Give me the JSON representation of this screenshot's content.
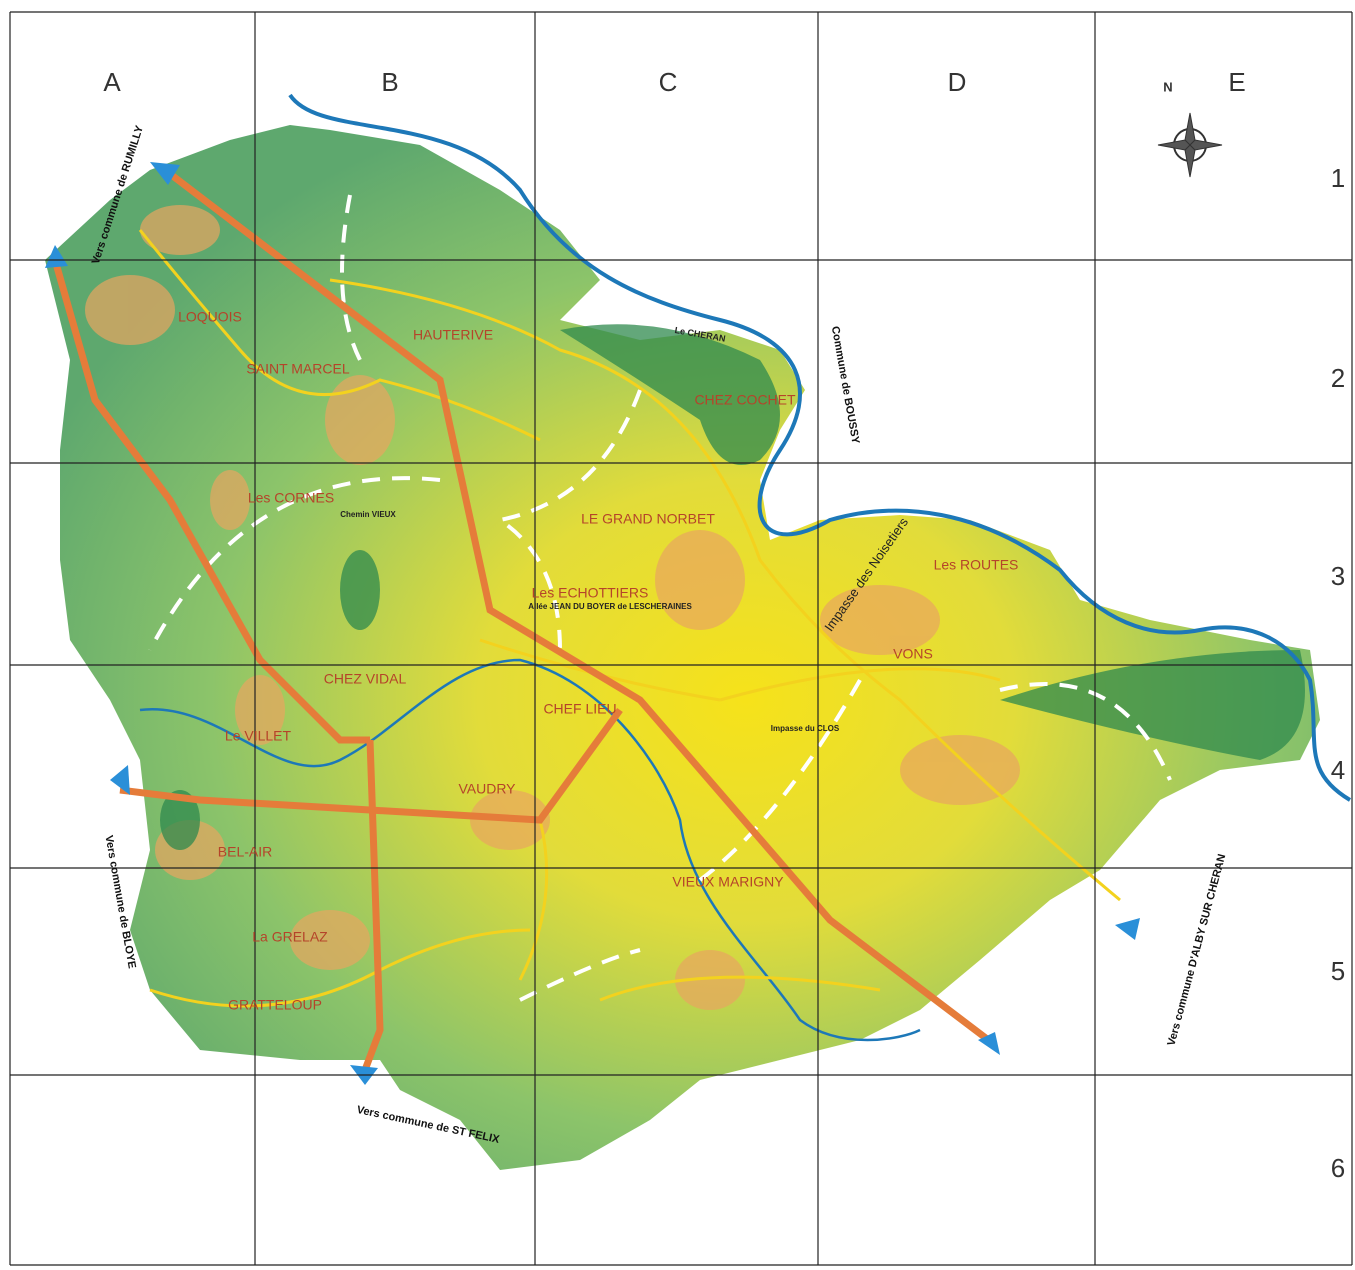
{
  "grid": {
    "columns": [
      "A",
      "B",
      "C",
      "D",
      "E"
    ],
    "rows": [
      "1",
      "2",
      "3",
      "4",
      "5",
      "6"
    ]
  },
  "compass": "N",
  "places": [
    "LOQUOIS",
    "SAINT MARCEL",
    "HAUTERIVE",
    "Les CORNES",
    "CHEZ COCHET",
    "LE GRAND NORBET",
    "Les ECHOTTIERS",
    "Les ROUTES",
    "VONS",
    "CHEZ VIDAL",
    "CHEF LIEU",
    "Le VILLET",
    "VAUDRY",
    "BEL-AIR",
    "VIEUX MARIGNY",
    "La GRELAZ",
    "GRATTELOUP"
  ],
  "directions": [
    "Vers commune de RUMILLY",
    "Vers commune de BLOYE",
    "Vers commune de ST FELIX",
    "Vers commune D'ALBY SUR CHERAN",
    "Commune de BOUSSY"
  ],
  "streets": [
    "Impasse des Noisetiers",
    "Allée JEAN DU BOYER de LESCHERAINES",
    "Chemin VIEUX",
    "Impasse du CLOS",
    "Le CHERAN"
  ]
}
